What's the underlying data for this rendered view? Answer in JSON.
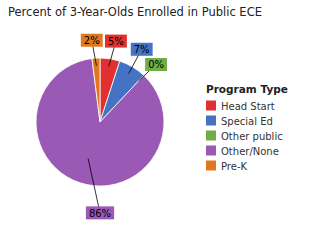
{
  "chart_data": {
    "type": "pie",
    "title": "Percent of 3-Year-Olds Enrolled in Public ECE",
    "categories": [
      "Head Start",
      "Special Ed",
      "Other public",
      "Other/None",
      "Pre-K"
    ],
    "values": [
      5,
      7,
      0,
      86,
      2
    ],
    "value_labels": [
      "5%",
      "7%",
      "0%",
      "86%",
      "2%"
    ],
    "colors": [
      "#e03030",
      "#4472c4",
      "#70ad47",
      "#9b59b6",
      "#e07820"
    ],
    "legend_title": "Program Type",
    "legend": "right",
    "data_labels": true
  }
}
